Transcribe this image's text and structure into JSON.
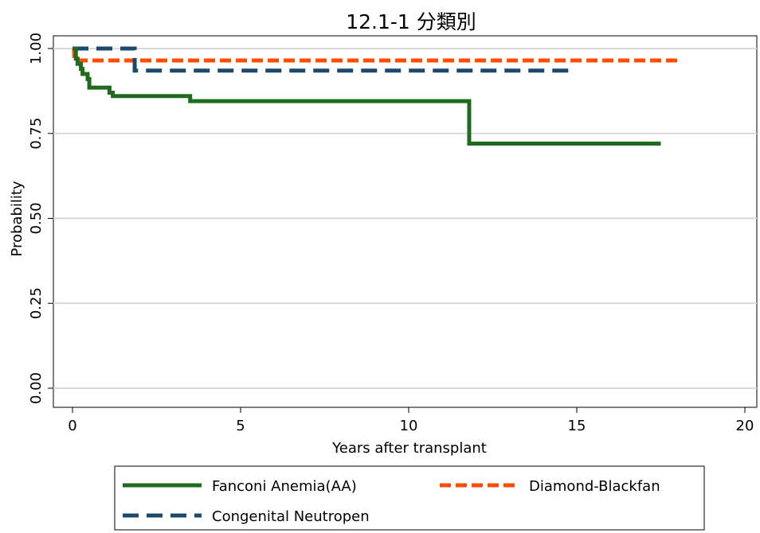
{
  "chart_data": {
    "type": "line",
    "title": "12.1-1 分類別",
    "xlabel": "Years after transplant",
    "ylabel": "Probability",
    "xlim": [
      0,
      20
    ],
    "ylim": [
      0,
      1
    ],
    "xticks": [
      "0",
      "5",
      "10",
      "15",
      "20"
    ],
    "yticks": [
      "0.00",
      "0.25",
      "0.50",
      "0.75",
      "1.00"
    ],
    "grid": "horizontal",
    "legend_position": "bottom",
    "series": [
      {
        "name": "Fanconi Anemia(AA)",
        "color": "#1e6b1e",
        "style": "solid",
        "step": [
          [
            0,
            1.0
          ],
          [
            0.1,
            0.97
          ],
          [
            0.15,
            0.955
          ],
          [
            0.25,
            0.94
          ],
          [
            0.3,
            0.925
          ],
          [
            0.45,
            0.91
          ],
          [
            0.5,
            0.885
          ],
          [
            1.1,
            0.87
          ],
          [
            1.2,
            0.86
          ],
          [
            3.5,
            0.845
          ],
          [
            11.8,
            0.72
          ],
          [
            17.5,
            0.72
          ]
        ]
      },
      {
        "name": "Diamond-Blackfan",
        "color": "#ff4c00",
        "style": "dashed",
        "step": [
          [
            0,
            1.0
          ],
          [
            0.05,
            0.965
          ],
          [
            18.1,
            0.965
          ]
        ]
      },
      {
        "name": "Congenital Neutropen",
        "color": "#1c4a6e",
        "style": "longdash",
        "step": [
          [
            0,
            1.0
          ],
          [
            1.85,
            0.935
          ],
          [
            14.8,
            0.935
          ]
        ]
      }
    ]
  }
}
